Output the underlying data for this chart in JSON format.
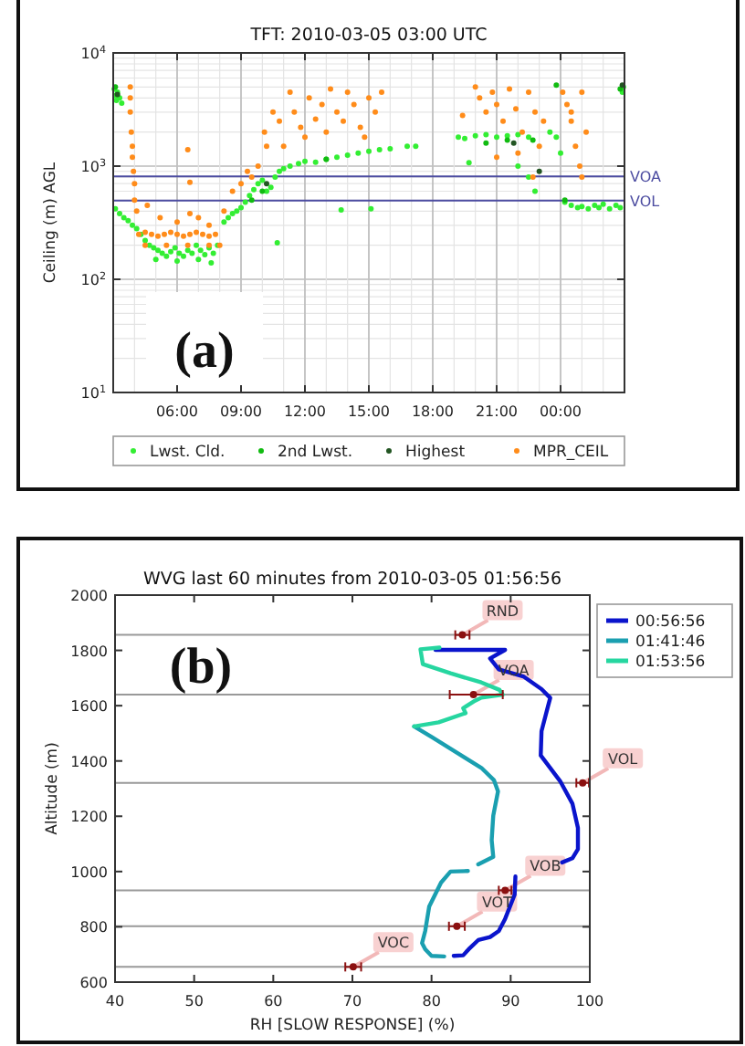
{
  "chart_data": [
    {
      "type": "scatter",
      "title": "TFT: 2010-03-05 03:00 UTC",
      "ylabel": "Ceiling (m) AGL",
      "xlim": [
        3,
        27
      ],
      "xticks": [
        {
          "value": 6,
          "label": "06:00"
        },
        {
          "value": 9,
          "label": "09:00"
        },
        {
          "value": 12,
          "label": "12:00"
        },
        {
          "value": 15,
          "label": "15:00"
        },
        {
          "value": 18,
          "label": "18:00"
        },
        {
          "value": 21,
          "label": "21:00"
        },
        {
          "value": 24,
          "label": "00:00"
        }
      ],
      "ylim": [
        10,
        10000
      ],
      "yticks": [
        {
          "value": 10,
          "label": "10$^{1}$"
        },
        {
          "value": 100,
          "label": "10$^{2}$"
        },
        {
          "value": 1000,
          "label": "10$^{3}$"
        },
        {
          "value": 10000,
          "label": "10$^{4}$"
        }
      ],
      "log": "y",
      "grid": true,
      "marker": "circle",
      "legend": "bottom",
      "series": [
        {
          "name": "Lwst. Cld.",
          "color": "#33ee33",
          "x": [
            3.05,
            3.1,
            3.15,
            3.2,
            3.3,
            3.4,
            3.1,
            3.3,
            3.5,
            3.7,
            3.9,
            4.1,
            4.3,
            4.5,
            4.7,
            4.9,
            5.1,
            5.3,
            5.5,
            5.7,
            5.9,
            6.1,
            6.3,
            6.5,
            6.7,
            6.9,
            7.1,
            7.3,
            7.5,
            7.7,
            7.9,
            5.0,
            6.0,
            7.0,
            7.6,
            8.2,
            8.4,
            8.6,
            8.8,
            9.0,
            9.2,
            9.4,
            9.6,
            9.8,
            10.0,
            10.2,
            10.4,
            10.6,
            10.8,
            11.0,
            11.3,
            11.7,
            12.0,
            12.5,
            13.0,
            13.5,
            14.0,
            14.5,
            15.0,
            15.5,
            16.0,
            16.8,
            17.2,
            19.2,
            19.5,
            20.0,
            20.5,
            21.0,
            21.5,
            22.0,
            22.5,
            22.0,
            22.5,
            22.8,
            23.5,
            23.8,
            24.0,
            24.2,
            24.5,
            24.8,
            25.0,
            25.3,
            25.6,
            25.8,
            26.0,
            26.3,
            26.6,
            26.8,
            26.95,
            26.9,
            13.7,
            15.1,
            10.7,
            19.7
          ],
          "values": [
            4800,
            4200,
            3800,
            4500,
            4000,
            3600,
            420,
            380,
            350,
            330,
            300,
            280,
            250,
            220,
            200,
            190,
            180,
            170,
            160,
            175,
            190,
            170,
            160,
            180,
            170,
            200,
            180,
            165,
            190,
            170,
            200,
            150,
            145,
            150,
            140,
            320,
            350,
            380,
            400,
            430,
            480,
            550,
            620,
            700,
            750,
            600,
            650,
            800,
            900,
            950,
            1000,
            1050,
            1100,
            1080,
            1150,
            1200,
            1250,
            1300,
            1350,
            1400,
            1420,
            1500,
            1500,
            1800,
            1750,
            1850,
            1900,
            1800,
            1850,
            1900,
            1800,
            1000,
            800,
            600,
            2000,
            1800,
            1300,
            480,
            450,
            430,
            440,
            420,
            450,
            430,
            460,
            420,
            450,
            430,
            5000,
            4500,
            410,
            420,
            210,
            1070
          ]
        },
        {
          "name": "2nd Lwst.",
          "color": "#11bb11",
          "x": [
            3.1,
            9.5,
            10.0,
            13.0,
            20.5,
            21.5,
            22.7,
            23.8,
            24.2,
            26.8
          ],
          "values": [
            5000,
            500,
            600,
            1150,
            1600,
            1700,
            1700,
            5200,
            500,
            4800
          ]
        },
        {
          "name": "Highest",
          "color": "#225522",
          "x": [
            3.2,
            10.2,
            21.8,
            23.0,
            26.9
          ],
          "values": [
            4300,
            700,
            1600,
            900,
            5200
          ]
        },
        {
          "name": "MPR_CEIL",
          "color": "#ff8c1a",
          "x": [
            3.8,
            3.8,
            3.8,
            3.85,
            3.9,
            3.9,
            3.95,
            4.0,
            4.0,
            4.1,
            4.2,
            4.5,
            4.8,
            5.1,
            5.4,
            5.7,
            6.0,
            6.3,
            6.6,
            6.9,
            7.2,
            7.5,
            7.8,
            4.5,
            5.5,
            6.5,
            7.5,
            8.0,
            4.6,
            5.2,
            6.0,
            6.6,
            7.0,
            7.5,
            6.5,
            6.6,
            8.2,
            8.6,
            9.0,
            9.3,
            9.5,
            9.8,
            10.1,
            10.2,
            10.5,
            10.8,
            11.0,
            11.3,
            11.5,
            11.8,
            12.0,
            12.2,
            12.5,
            12.8,
            13.0,
            13.2,
            13.5,
            13.8,
            14.0,
            14.3,
            14.6,
            15.0,
            15.3,
            15.6,
            14.8,
            19.4,
            20.0,
            20.2,
            20.5,
            20.8,
            21.0,
            21.3,
            21.6,
            21.9,
            22.2,
            22.5,
            22.8,
            23.0,
            23.2,
            22.7,
            21.0,
            22.0,
            24.1,
            24.3,
            24.5,
            24.7,
            24.9,
            25.0,
            24.5,
            25.0,
            25.2
          ],
          "values": [
            5000,
            4000,
            3000,
            2000,
            1500,
            1200,
            900,
            700,
            500,
            400,
            250,
            260,
            250,
            240,
            250,
            260,
            250,
            240,
            250,
            260,
            250,
            240,
            250,
            200,
            200,
            200,
            200,
            200,
            450,
            350,
            320,
            380,
            350,
            300,
            1400,
            720,
            400,
            600,
            700,
            900,
            800,
            1000,
            2000,
            1500,
            3000,
            2500,
            1500,
            4500,
            3000,
            2200,
            1800,
            4000,
            2600,
            3500,
            2000,
            4800,
            3000,
            2500,
            4500,
            3500,
            2200,
            4000,
            3000,
            4500,
            1800,
            2800,
            5000,
            4000,
            3000,
            4500,
            3500,
            2500,
            4800,
            3200,
            2000,
            4500,
            3000,
            1500,
            2500,
            800,
            1200,
            1300,
            4500,
            3500,
            2500,
            1500,
            1000,
            800,
            3000,
            4500,
            2000
          ]
        }
      ],
      "ref_lines": [
        {
          "axis": "y",
          "value": 810,
          "label": "VOA",
          "color": "#4b4ba0"
        },
        {
          "axis": "y",
          "value": 495,
          "label": "VOL",
          "color": "#4b4ba0"
        }
      ],
      "annotations": [
        "(a)"
      ]
    },
    {
      "type": "line",
      "title": "WVG last 60 minutes from 2010-03-05 01:56:56",
      "xlabel": "RH [SLOW RESPONSE] (%)",
      "ylabel": "Altitude (m)",
      "xlim": [
        40,
        100
      ],
      "xticks": [
        40,
        50,
        60,
        70,
        80,
        90,
        100
      ],
      "ylim": [
        600,
        2000
      ],
      "yticks": [
        600,
        800,
        1000,
        1200,
        1400,
        1600,
        1800,
        2000
      ],
      "legend": "right",
      "series": [
        {
          "name": "00:56:56",
          "color": "#0a14cc",
          "x": [
            80.5,
            89.3,
            87.4,
            88.5,
            91.6,
            93.9,
            95.0,
            94.7,
            93.9,
            93.8,
            96.3,
            97.8,
            98.5,
            98.5,
            97.8,
            96.5,
            93.0,
            90.6,
            90.5,
            89.3,
            88.5,
            87.4,
            85.9,
            84.7,
            84.0,
            82.8
          ],
          "values": [
            1802,
            1802,
            1771,
            1731,
            1706,
            1660,
            1628,
            1596,
            1508,
            1420,
            1325,
            1246,
            1158,
            1081,
            1048,
            1033,
            null,
            982,
            916,
            829,
            785,
            763,
            752,
            719,
            697,
            695
          ]
        },
        {
          "name": "01:41:46",
          "color": "#1a9fb0",
          "x": [
            77.8,
            80.1,
            83.2,
            86.3,
            87.9,
            88.4,
            87.8,
            87.6,
            87.8,
            85.9,
            85.0,
            84.6,
            82.4,
            81.2,
            79.7,
            79.2,
            78.8,
            79.2,
            80.0,
            81.6
          ],
          "values": [
            1525,
            1485,
            1430,
            1375,
            1330,
            1290,
            1202,
            1114,
            1053,
            1026,
            null,
            1002,
            1000,
            960,
            873,
            785,
            741,
            719,
            695,
            693
          ]
        },
        {
          "name": "01:53:56",
          "color": "#26d6a0",
          "x": [
            81.0,
            78.6,
            78.9,
            82.4,
            86.3,
            88.6,
            89.0,
            86.3,
            85.5,
            84.0,
            84.3,
            80.9,
            77.8
          ],
          "values": [
            1810,
            1804,
            1750,
            1717,
            1684,
            1657,
            1640,
            1629,
            1618,
            1591,
            1573,
            1540,
            1525
          ]
        },
        {
          "type": "scatter",
          "color": "#8b1010",
          "x": [
            83.9,
            85.3,
            99.1,
            89.3,
            83.2,
            70.1
          ],
          "values": [
            1856,
            1640,
            1321,
            932,
            802,
            655
          ],
          "xerrors": [
            0.9,
            [
              82.3,
              89.0
            ],
            0.8,
            0.8,
            1,
            1
          ]
        }
      ],
      "ref_lines": [
        {
          "axis": "y",
          "value": 1856,
          "color": "#999999"
        },
        {
          "axis": "y",
          "value": 1640,
          "color": "#999999"
        },
        {
          "axis": "y",
          "value": 1321,
          "color": "#999999"
        },
        {
          "axis": "y",
          "value": 932,
          "color": "#999999"
        },
        {
          "axis": "y",
          "value": 802,
          "color": "#999999"
        },
        {
          "axis": "y",
          "value": 655,
          "color": "#999999"
        }
      ],
      "annotations": [
        "(b)",
        {
          "text": "RND",
          "x": 83.9,
          "y": 1856
        },
        {
          "text": "VOA",
          "x": 85.3,
          "y": 1640
        },
        {
          "text": "VOL",
          "x": 99.1,
          "y": 1321
        },
        {
          "text": "VOB",
          "x": 89.3,
          "y": 932
        },
        {
          "text": "VOT",
          "x": 83.2,
          "y": 802
        },
        {
          "text": "VOC",
          "x": 70.1,
          "y": 655
        }
      ]
    }
  ]
}
